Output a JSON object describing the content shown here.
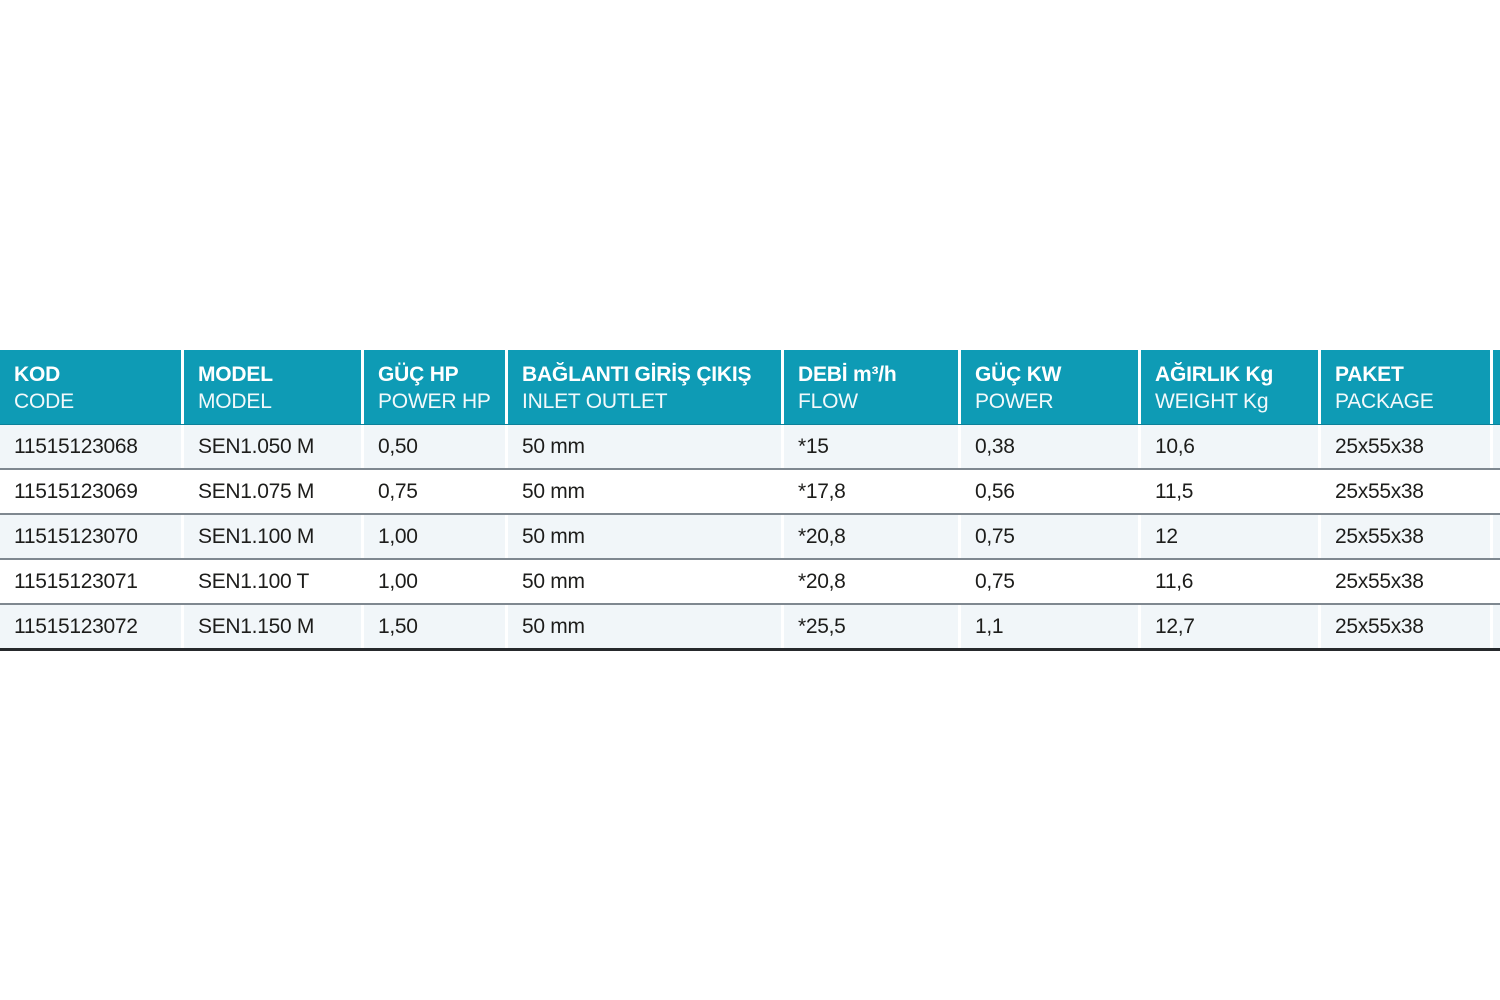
{
  "table": {
    "columns": [
      {
        "tr": "KOD",
        "en": "CODE"
      },
      {
        "tr": "MODEL",
        "en": "MODEL"
      },
      {
        "tr": "GÜÇ HP",
        "en": "POWER HP"
      },
      {
        "tr": "BAĞLANTI GİRİŞ ÇIKIŞ",
        "en": "INLET OUTLET"
      },
      {
        "tr": "DEBİ m³/h",
        "en": "FLOW"
      },
      {
        "tr": "GÜÇ KW",
        "en": "POWER"
      },
      {
        "tr": "AĞIRLIK Kg",
        "en": "WEIGHT Kg"
      },
      {
        "tr": "PAKET",
        "en": "PACKAGE"
      }
    ],
    "rows": [
      [
        "11515123068",
        "SEN1.050 M",
        "0,50",
        "50 mm",
        "*15",
        "0,38",
        "10,6",
        "25x55x38"
      ],
      [
        "11515123069",
        "SEN1.075 M",
        "0,75",
        "50 mm",
        "*17,8",
        "0,56",
        "11,5",
        "25x55x38"
      ],
      [
        "11515123070",
        "SEN1.100 M",
        "1,00",
        "50 mm",
        "*20,8",
        "0,75",
        "12",
        "25x55x38"
      ],
      [
        "11515123071",
        "SEN1.100 T",
        "1,00",
        "50 mm",
        "*20,8",
        "0,75",
        "11,6",
        "25x55x38"
      ],
      [
        "11515123072",
        "SEN1.150 M",
        "1,50",
        "50 mm",
        "*25,5",
        "1,1",
        "12,7",
        "25x55x38"
      ]
    ],
    "colors": {
      "header_bg": "#0e9bb5",
      "header_text": "#ffffff",
      "row_alt_bg": "#f1f6f9",
      "row_bg": "#ffffff",
      "row_divider": "#7f8890",
      "bottom_border": "#26292c",
      "data_text": "#1d1d1b"
    }
  }
}
